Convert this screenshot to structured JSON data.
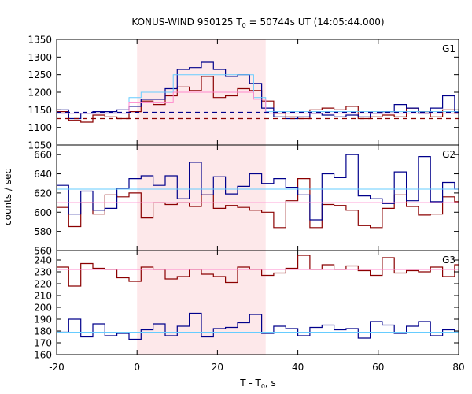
{
  "chart_data": {
    "type": "line",
    "title": "KONUS-WIND 950125 T",
    "title_sub": "0",
    "title_rest": " = 50744s UT (14:05:44.000)",
    "xlabel_main": "T - T",
    "xlabel_sub": "0",
    "xlabel_rest": ", s",
    "ylabel": "counts / sec",
    "xlim": [
      -20,
      80
    ],
    "x_ticks": [
      "-20",
      "0",
      "20",
      "40",
      "60",
      "80"
    ],
    "highlight_interval": [
      0,
      32
    ],
    "colors": {
      "red": "#8b0000",
      "blue": "#00008b",
      "cyan": "#66ccff",
      "pink": "#ff88cc",
      "highlight": "#fde8ea"
    },
    "bin_edges": [
      -20,
      -17,
      -14,
      -11,
      -8,
      -5,
      -2,
      1,
      4,
      7,
      10,
      13,
      16,
      19,
      22,
      25,
      28,
      31,
      34,
      37,
      40,
      43,
      46,
      49,
      52,
      55,
      58,
      61,
      64,
      67,
      70,
      73,
      76,
      79,
      80
    ],
    "panels": [
      {
        "label": "G1",
        "ylim": [
          1050,
          1350
        ],
        "y_ticks": [
          "1050",
          "1100",
          "1150",
          "1200",
          "1250",
          "1300",
          "1350"
        ],
        "series": [
          {
            "color": "red",
            "type": "step",
            "values": [
              1145,
              1120,
              1115,
              1135,
              1130,
              1125,
              1145,
              1175,
              1165,
              1190,
              1215,
              1205,
              1245,
              1185,
              1190,
              1210,
              1205,
              1175,
              1140,
              1130,
              1125,
              1150,
              1155,
              1150,
              1160,
              1125,
              1130,
              1135,
              1130,
              1155,
              1145,
              1130,
              1150,
              1140
            ]
          },
          {
            "color": "blue",
            "type": "step",
            "values": [
              1150,
              1125,
              1140,
              1145,
              1145,
              1150,
              1160,
              1180,
              1180,
              1210,
              1265,
              1270,
              1285,
              1265,
              1245,
              1250,
              1225,
              1155,
              1130,
              1125,
              1130,
              1140,
              1135,
              1130,
              1135,
              1130,
              1140,
              1145,
              1165,
              1155,
              1140,
              1155,
              1190,
              1145
            ]
          },
          {
            "color": "cyan",
            "type": "levels",
            "segments": [
              [
                -20,
                -2,
                1140
              ],
              [
                -2,
                1,
                1185
              ],
              [
                1,
                9,
                1200
              ],
              [
                9,
                29,
                1250
              ],
              [
                29,
                32,
                1185
              ],
              [
                32,
                80,
                1145
              ]
            ]
          },
          {
            "color": "pink",
            "type": "levels",
            "segments": [
              [
                -20,
                -2,
                1140
              ],
              [
                -2,
                9,
                1170
              ],
              [
                9,
                29,
                1200
              ],
              [
                29,
                32,
                1180
              ],
              [
                32,
                80,
                1140
              ]
            ]
          },
          {
            "color": "red",
            "type": "dashed",
            "segments": [
              [
                -20,
                80,
                1125
              ]
            ]
          },
          {
            "color": "blue",
            "type": "dashed",
            "segments": [
              [
                -20,
                80,
                1143
              ]
            ]
          }
        ]
      },
      {
        "label": "G2",
        "ylim": [
          560,
          670
        ],
        "y_ticks": [
          "560",
          "580",
          "600",
          "620",
          "640",
          "660"
        ],
        "series": [
          {
            "color": "red",
            "type": "step",
            "values": [
              605,
              585,
              610,
              598,
              618,
              616,
              620,
              594,
              610,
              608,
              610,
              606,
              618,
              604,
              607,
              605,
              602,
              600,
              584,
              612,
              635,
              584,
              608,
              607,
              602,
              586,
              584,
              604,
              618,
              606,
              597,
              598,
              616,
              611
            ]
          },
          {
            "color": "blue",
            "type": "step",
            "values": [
              628,
              598,
              622,
              602,
              604,
              625,
              635,
              638,
              628,
              638,
              614,
              652,
              618,
              637,
              619,
              627,
              640,
              630,
              635,
              626,
              618,
              592,
              640,
              636,
              660,
              617,
              614,
              609,
              642,
              612,
              658,
              611,
              631,
              624
            ]
          },
          {
            "color": "cyan",
            "type": "levels",
            "segments": [
              [
                -20,
                80,
                624
              ]
            ]
          },
          {
            "color": "pink",
            "type": "levels",
            "segments": [
              [
                -20,
                80,
                610
              ]
            ]
          }
        ]
      },
      {
        "label": "G3",
        "ylim": [
          160,
          248
        ],
        "y_ticks": [
          "160",
          "170",
          "180",
          "190",
          "200",
          "210",
          "220",
          "230",
          "240"
        ],
        "series": [
          {
            "color": "red",
            "type": "step",
            "values": [
              234,
              218,
              237,
              233,
              232,
              225,
              222,
              234,
              232,
              224,
              226,
              232,
              228,
              226,
              221,
              234,
              232,
              227,
              229,
              233,
              244,
              232,
              236,
              232,
              235,
              231,
              227,
              242,
              229,
              231,
              230,
              234,
              226,
              236
            ]
          },
          {
            "color": "blue",
            "type": "step",
            "values": [
              179,
              190,
              175,
              186,
              176,
              178,
              173,
              181,
              186,
              176,
              184,
              195,
              175,
              182,
              183,
              187,
              194,
              178,
              184,
              182,
              176,
              183,
              185,
              181,
              182,
              174,
              188,
              185,
              178,
              184,
              188,
              176,
              181,
              179
            ]
          },
          {
            "color": "cyan",
            "type": "levels",
            "segments": [
              [
                -20,
                80,
                179
              ]
            ]
          },
          {
            "color": "pink",
            "type": "levels",
            "segments": [
              [
                -20,
                80,
                232
              ]
            ]
          }
        ]
      }
    ]
  }
}
